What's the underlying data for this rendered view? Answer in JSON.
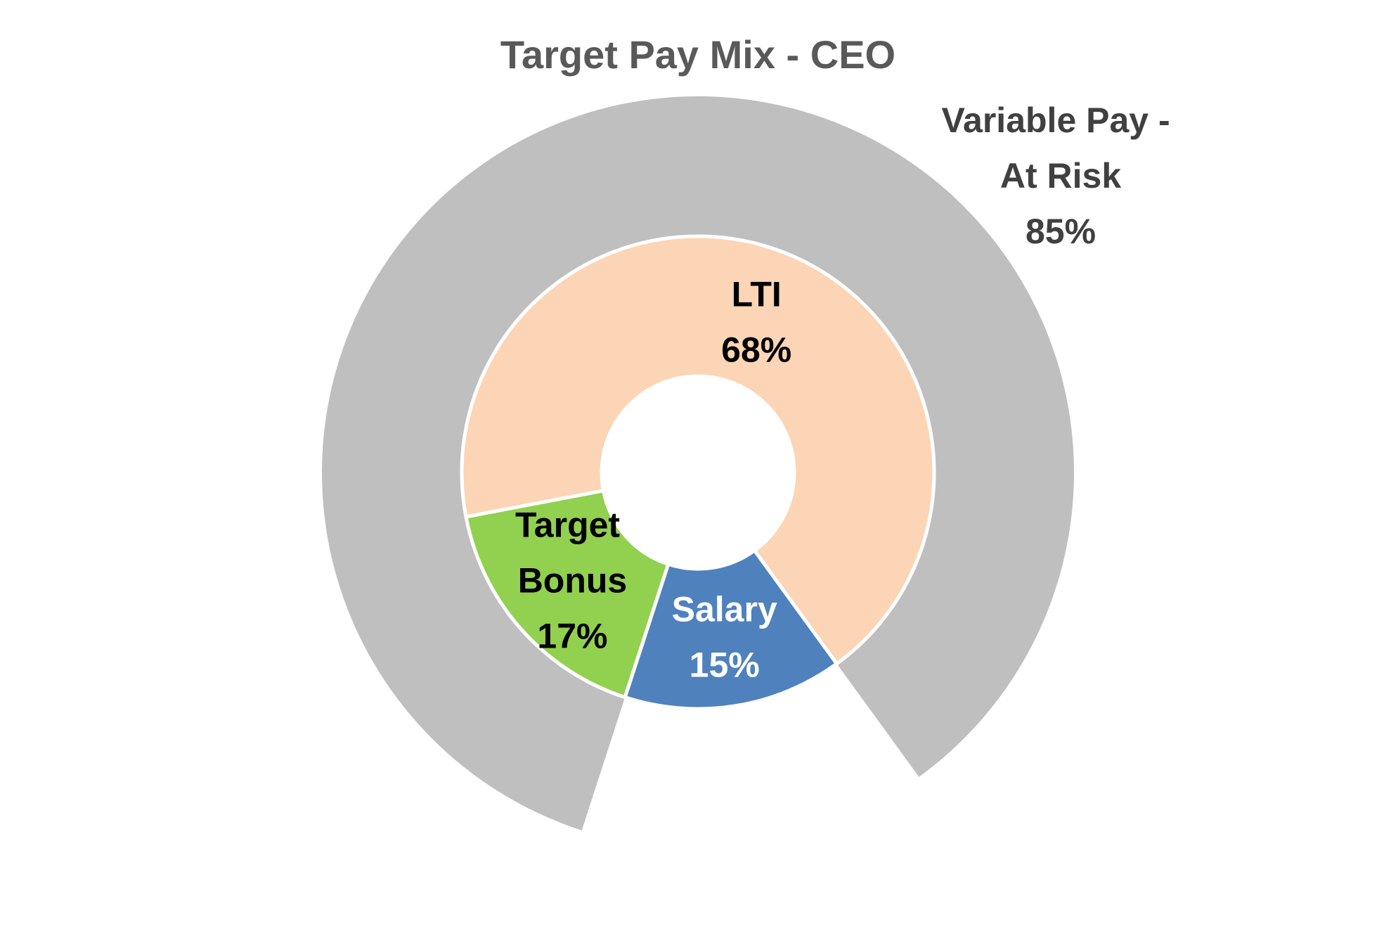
{
  "chart_data": {
    "type": "doughnut",
    "title": "Target Pay Mix - CEO",
    "start_angle": 144,
    "categories": [
      "Salary",
      "Target Bonus",
      "LTI"
    ],
    "values": [
      15,
      17,
      68
    ],
    "value_labels": [
      "15%",
      "17%",
      "68%"
    ],
    "colors": [
      "#4f81bd",
      "#92d050",
      "#fbd5b5"
    ],
    "label_colors": [
      "#ffffff",
      "#000000",
      "#000000"
    ],
    "outer": {
      "categories": [
        null,
        "Variable Pay - At Risk"
      ],
      "values": [
        15,
        85
      ],
      "value_labels": [
        null,
        "85%"
      ],
      "colors": [
        "none",
        "#bfbfbf"
      ],
      "label_color": "#404040"
    }
  }
}
